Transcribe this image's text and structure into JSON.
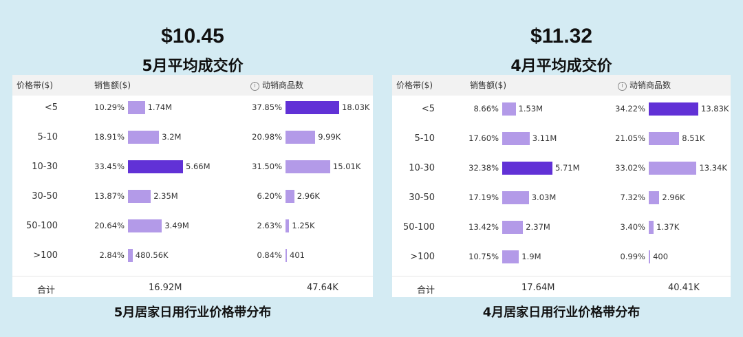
{
  "colors": {
    "bar_light": "#b39ae8",
    "bar_dark": "#6131d6",
    "background": "#d4ebf3"
  },
  "panels": [
    {
      "price": "$10.45",
      "subtitle": "5月平均成交价",
      "caption": "5月居家日用行业价格带分布",
      "headers": {
        "band": "价格带($)",
        "sales": "销售额($)",
        "products": "动销商品数"
      },
      "total_label": "合计",
      "total_sales": "16.92M",
      "total_products": "47.64K"
    },
    {
      "price": "$11.32",
      "subtitle": "4月平均成交价",
      "caption": "4月居家日用行业价格带分布",
      "headers": {
        "band": "价格带($)",
        "sales": "销售额($)",
        "products": "动销商品数"
      },
      "total_label": "合计",
      "total_sales": "17.64M",
      "total_products": "40.41K"
    }
  ],
  "chart_data": [
    {
      "type": "bar",
      "title": "5月居家日用行业价格带分布",
      "categories": [
        "<5",
        "5-10",
        "10-30",
        "30-50",
        "50-100",
        ">100"
      ],
      "series": [
        {
          "name": "销售额($)",
          "values": [
            1.74,
            3.2,
            5.66,
            2.35,
            3.49,
            0.48056
          ],
          "labels": [
            "1.74M",
            "3.2M",
            "5.66M",
            "2.35M",
            "3.49M",
            "480.56K"
          ],
          "shares": [
            "10.29%",
            "18.91%",
            "33.45%",
            "13.87%",
            "20.64%",
            "2.84%"
          ],
          "max_index": 2
        },
        {
          "name": "动销商品数",
          "values": [
            18.03,
            9.99,
            15.01,
            2.96,
            1.25,
            0.401
          ],
          "labels": [
            "18.03K",
            "9.99K",
            "15.01K",
            "2.96K",
            "1.25K",
            "401"
          ],
          "shares": [
            "37.85%",
            "20.98%",
            "31.50%",
            "6.20%",
            "2.63%",
            "0.84%"
          ],
          "max_index": 0
        }
      ]
    },
    {
      "type": "bar",
      "title": "4月居家日用行业价格带分布",
      "categories": [
        "<5",
        "5-10",
        "10-30",
        "30-50",
        "50-100",
        ">100"
      ],
      "series": [
        {
          "name": "销售额($)",
          "values": [
            1.53,
            3.11,
            5.71,
            3.03,
            2.37,
            1.9
          ],
          "labels": [
            "1.53M",
            "3.11M",
            "5.71M",
            "3.03M",
            "2.37M",
            "1.9M"
          ],
          "shares": [
            "8.66%",
            "17.60%",
            "32.38%",
            "17.19%",
            "13.42%",
            "10.75%"
          ],
          "max_index": 2
        },
        {
          "name": "动销商品数",
          "values": [
            13.83,
            8.51,
            13.34,
            2.96,
            1.37,
            0.4
          ],
          "labels": [
            "13.83K",
            "8.51K",
            "13.34K",
            "2.96K",
            "1.37K",
            "400"
          ],
          "shares": [
            "34.22%",
            "21.05%",
            "33.02%",
            "7.32%",
            "3.40%",
            "0.99%"
          ],
          "max_index": 0
        }
      ]
    }
  ]
}
